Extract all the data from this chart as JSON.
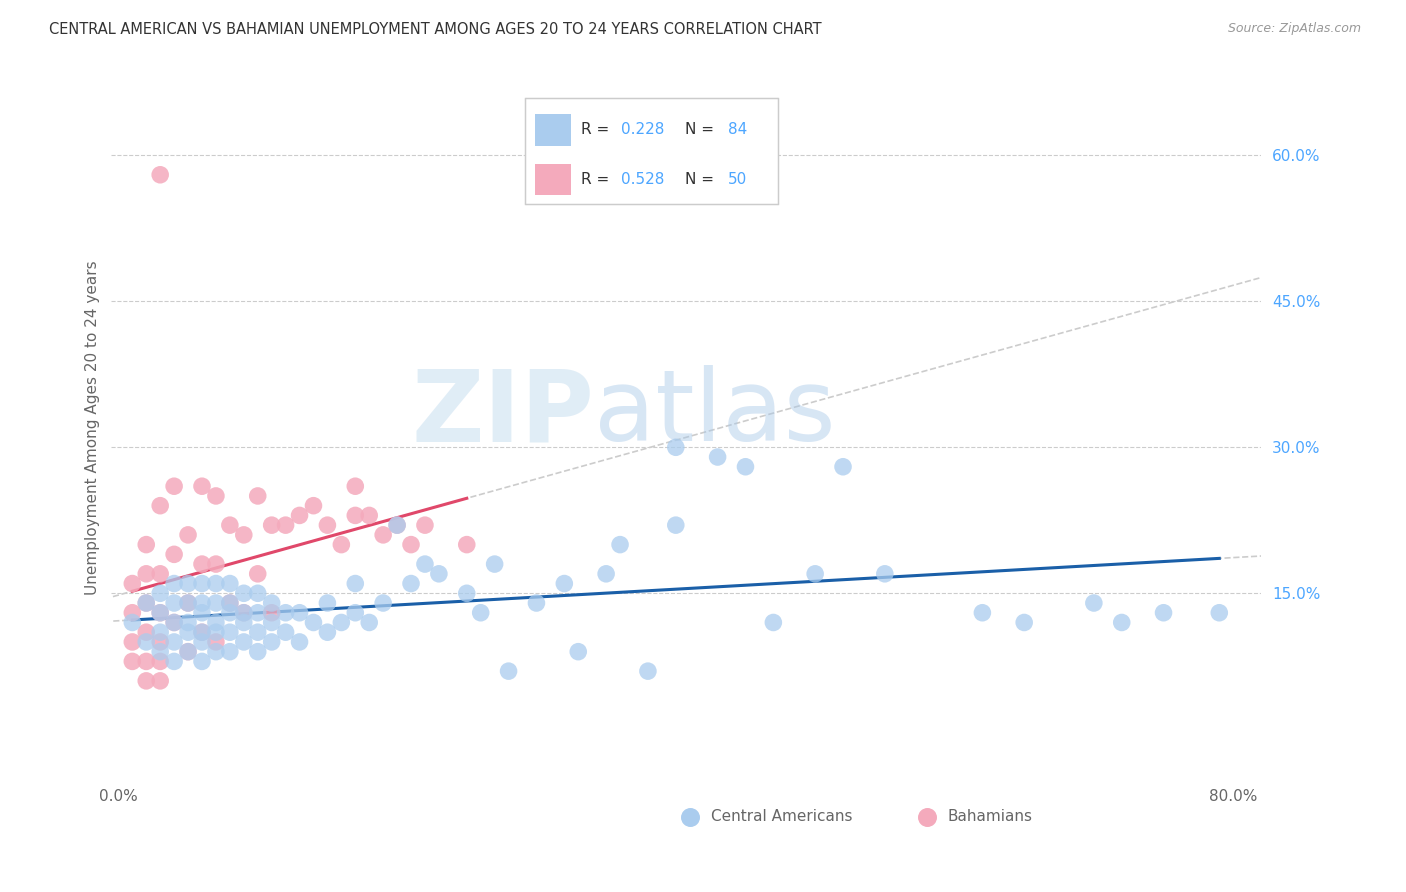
{
  "title": "CENTRAL AMERICAN VS BAHAMIAN UNEMPLOYMENT AMONG AGES 20 TO 24 YEARS CORRELATION CHART",
  "source": "Source: ZipAtlas.com",
  "ylabel": "Unemployment Among Ages 20 to 24 years",
  "xlim": [
    -0.005,
    0.82
  ],
  "ylim": [
    -0.04,
    0.68
  ],
  "yticks_right": [
    0.15,
    0.3,
    0.45,
    0.6
  ],
  "yticklabels_right": [
    "15.0%",
    "30.0%",
    "45.0%",
    "60.0%"
  ],
  "blue_color": "#aaccee",
  "pink_color": "#f4aabc",
  "blue_line_color": "#1a5fa8",
  "pink_line_color": "#e0486a",
  "dash_color": "#cccccc",
  "watermark_zip": "ZIP",
  "watermark_atlas": "atlas",
  "central_americans_x": [
    0.01,
    0.02,
    0.02,
    0.03,
    0.03,
    0.03,
    0.03,
    0.04,
    0.04,
    0.04,
    0.04,
    0.04,
    0.05,
    0.05,
    0.05,
    0.05,
    0.05,
    0.06,
    0.06,
    0.06,
    0.06,
    0.06,
    0.06,
    0.07,
    0.07,
    0.07,
    0.07,
    0.07,
    0.08,
    0.08,
    0.08,
    0.08,
    0.08,
    0.09,
    0.09,
    0.09,
    0.09,
    0.1,
    0.1,
    0.1,
    0.1,
    0.11,
    0.11,
    0.11,
    0.12,
    0.12,
    0.13,
    0.13,
    0.14,
    0.15,
    0.15,
    0.16,
    0.17,
    0.17,
    0.18,
    0.19,
    0.2,
    0.21,
    0.22,
    0.23,
    0.25,
    0.26,
    0.27,
    0.28,
    0.3,
    0.32,
    0.33,
    0.35,
    0.36,
    0.38,
    0.4,
    0.4,
    0.43,
    0.45,
    0.47,
    0.5,
    0.52,
    0.55,
    0.62,
    0.65,
    0.7,
    0.72,
    0.75,
    0.79
  ],
  "central_americans_y": [
    0.12,
    0.1,
    0.14,
    0.09,
    0.11,
    0.13,
    0.15,
    0.08,
    0.1,
    0.12,
    0.14,
    0.16,
    0.09,
    0.11,
    0.12,
    0.14,
    0.16,
    0.08,
    0.1,
    0.11,
    0.13,
    0.14,
    0.16,
    0.09,
    0.11,
    0.12,
    0.14,
    0.16,
    0.09,
    0.11,
    0.13,
    0.14,
    0.16,
    0.1,
    0.12,
    0.13,
    0.15,
    0.09,
    0.11,
    0.13,
    0.15,
    0.1,
    0.12,
    0.14,
    0.11,
    0.13,
    0.1,
    0.13,
    0.12,
    0.11,
    0.14,
    0.12,
    0.13,
    0.16,
    0.12,
    0.14,
    0.22,
    0.16,
    0.18,
    0.17,
    0.15,
    0.13,
    0.18,
    0.07,
    0.14,
    0.16,
    0.09,
    0.17,
    0.2,
    0.07,
    0.22,
    0.3,
    0.29,
    0.28,
    0.12,
    0.17,
    0.28,
    0.17,
    0.13,
    0.12,
    0.14,
    0.12,
    0.13,
    0.13
  ],
  "bahamians_x": [
    0.01,
    0.01,
    0.01,
    0.01,
    0.02,
    0.02,
    0.02,
    0.02,
    0.02,
    0.02,
    0.03,
    0.03,
    0.03,
    0.03,
    0.03,
    0.03,
    0.04,
    0.04,
    0.04,
    0.05,
    0.05,
    0.05,
    0.06,
    0.06,
    0.06,
    0.07,
    0.07,
    0.07,
    0.08,
    0.08,
    0.09,
    0.09,
    0.1,
    0.1,
    0.11,
    0.11,
    0.12,
    0.13,
    0.14,
    0.15,
    0.16,
    0.17,
    0.17,
    0.18,
    0.19,
    0.2,
    0.21,
    0.22,
    0.25,
    0.03
  ],
  "bahamians_y": [
    0.08,
    0.1,
    0.13,
    0.16,
    0.06,
    0.08,
    0.11,
    0.14,
    0.17,
    0.2,
    0.06,
    0.08,
    0.1,
    0.13,
    0.17,
    0.24,
    0.12,
    0.19,
    0.26,
    0.09,
    0.14,
    0.21,
    0.11,
    0.18,
    0.26,
    0.1,
    0.18,
    0.25,
    0.14,
    0.22,
    0.13,
    0.21,
    0.17,
    0.25,
    0.13,
    0.22,
    0.22,
    0.23,
    0.24,
    0.22,
    0.2,
    0.23,
    0.26,
    0.23,
    0.21,
    0.22,
    0.2,
    0.22,
    0.2,
    0.58
  ]
}
